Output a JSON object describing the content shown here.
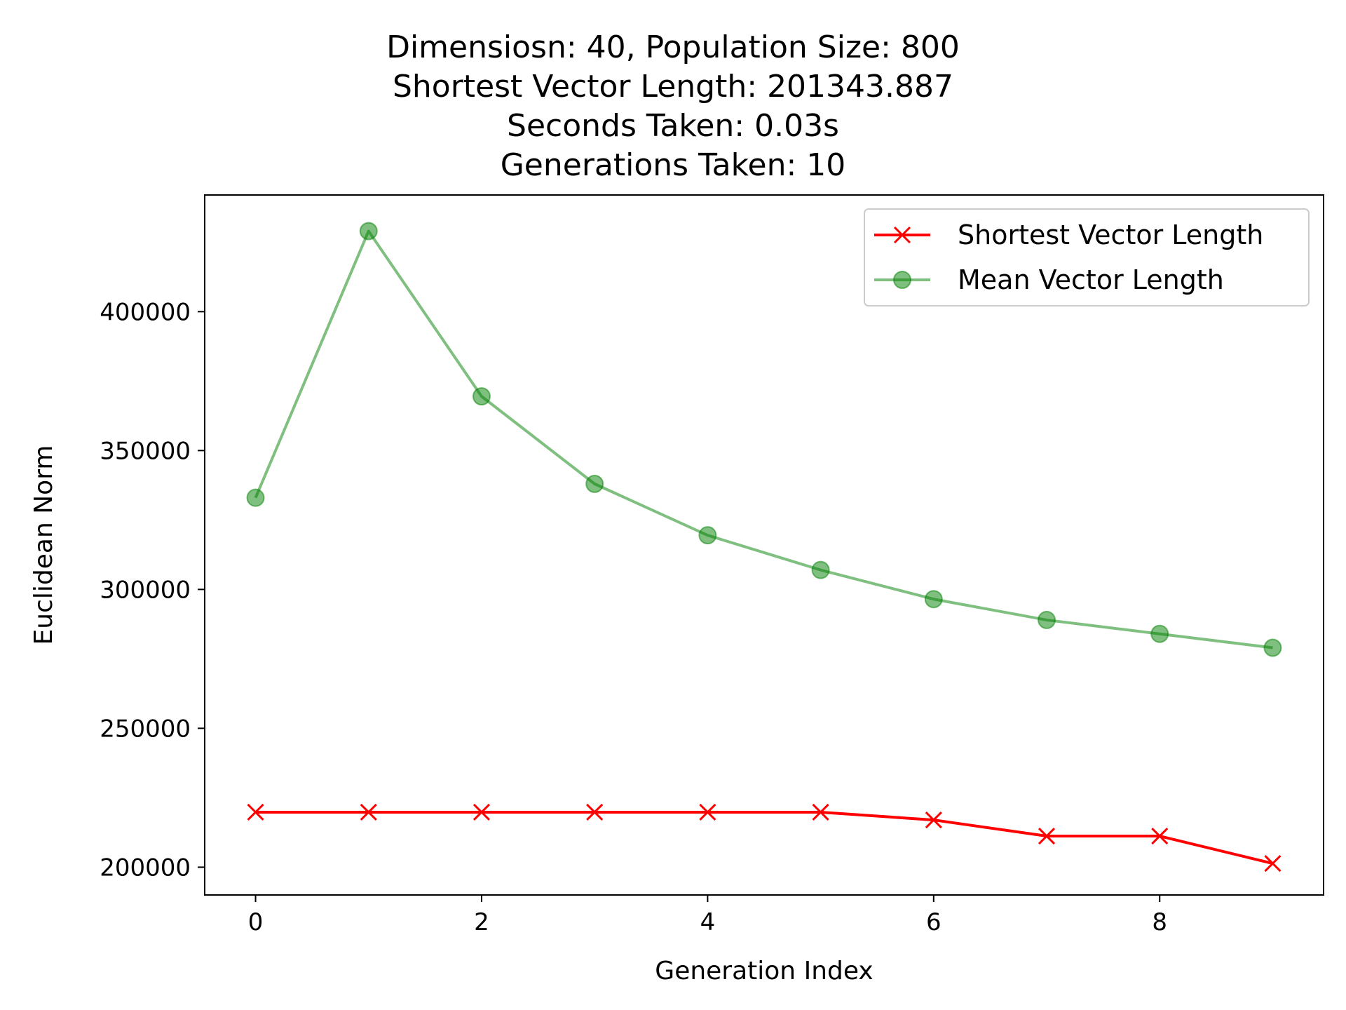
{
  "chart_data": {
    "type": "line",
    "title_lines": [
      "Dimensiosn: 40, Population Size: 800",
      "Shortest Vector Length: 201343.887",
      "Seconds Taken: 0.03s",
      "Generations Taken: 10"
    ],
    "xlabel": "Generation Index",
    "ylabel": "Euclidean Norm",
    "x": [
      0,
      1,
      2,
      3,
      4,
      5,
      6,
      7,
      8,
      9
    ],
    "xlim": [
      -0.45,
      9.45
    ],
    "ylim": [
      190000,
      442000
    ],
    "xticks": [
      0,
      2,
      4,
      6,
      8
    ],
    "yticks": [
      200000,
      250000,
      300000,
      350000,
      400000
    ],
    "xtick_labels": [
      "0",
      "2",
      "4",
      "6",
      "8"
    ],
    "ytick_labels": [
      "200000",
      "250000",
      "300000",
      "350000",
      "400000"
    ],
    "grid": false,
    "legend_position": "top-right",
    "series": [
      {
        "name": "Shortest Vector Length",
        "color": "#ff0000",
        "marker": "x",
        "values": [
          219800,
          219800,
          219800,
          219800,
          219800,
          219800,
          217000,
          211200,
          211200,
          201343.887
        ]
      },
      {
        "name": "Mean Vector Length",
        "color": "#008000",
        "marker": "circle",
        "alpha": 0.5,
        "values": [
          333000,
          429000,
          369500,
          338000,
          319500,
          307000,
          296500,
          289000,
          284000,
          279000
        ]
      }
    ]
  }
}
